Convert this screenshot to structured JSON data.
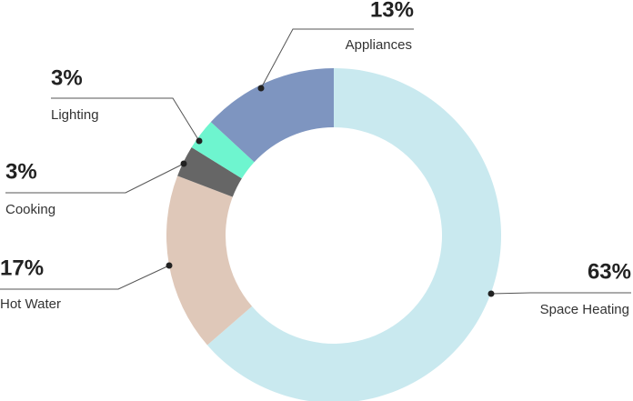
{
  "chart_data": {
    "type": "donut",
    "categories": [
      "Space Heating",
      "Hot Water",
      "Cooking",
      "Lighting",
      "Appliances"
    ],
    "values": [
      63,
      17,
      3,
      3,
      13
    ],
    "value_labels": [
      "63%",
      "17%",
      "3%",
      "3%",
      "13%"
    ],
    "colors": [
      "#c9e9ef",
      "#dfc8b9",
      "#666666",
      "#6ef5cf",
      "#7e95c0"
    ]
  }
}
